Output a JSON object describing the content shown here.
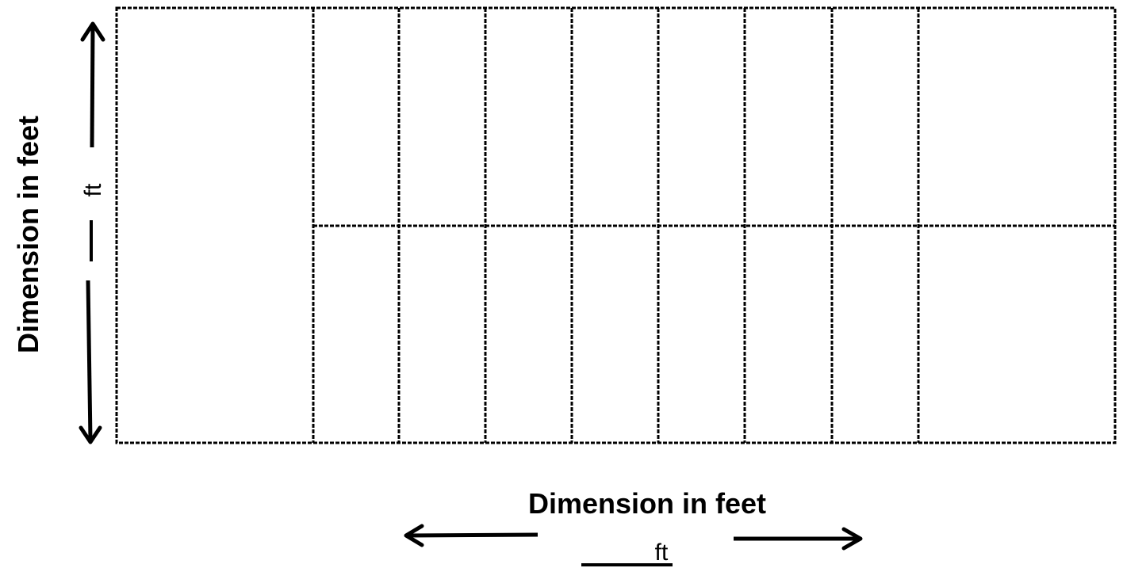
{
  "diagram": {
    "horizontal_dimension": {
      "label": "Dimension in feet",
      "unit": "ft"
    },
    "vertical_dimension": {
      "label": "Dimension in feet",
      "unit": "ft"
    }
  }
}
